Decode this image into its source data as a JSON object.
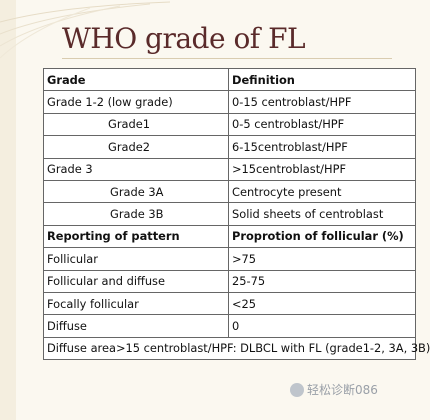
{
  "title": "WHO grade of FL",
  "table": {
    "header": {
      "grade": "Grade",
      "definition": "Definition"
    },
    "rows": [
      {
        "grade": "Grade 1-2 (low grade)",
        "definition": "0-15 centroblast/HPF"
      },
      {
        "grade": "Grade1",
        "definition": "0-5 centroblast/HPF"
      },
      {
        "grade": "Grade2",
        "definition": "6-15centroblast/HPF"
      },
      {
        "grade": "Grade 3",
        "definition": ">15centroblast/HPF"
      },
      {
        "grade": "Grade 3A",
        "definition": "Centrocyte present"
      },
      {
        "grade": "Grade 3B",
        "definition": "Solid sheets of centroblast"
      }
    ],
    "pattern_header": {
      "label": "Reporting of pattern",
      "value": "Proprotion of follicular (%)"
    },
    "pattern_rows": [
      {
        "label": "Follicular",
        "value": ">75"
      },
      {
        "label": "Follicular and diffuse",
        "value": "25-75"
      },
      {
        "label": "Focally follicular",
        "value": "<25"
      },
      {
        "label": "Diffuse",
        "value": "0"
      }
    ],
    "footer": "Diffuse area>15 centroblast/HPF: DLBCL with FL (grade1-2, 3A, 3B)"
  },
  "watermark": {
    "text": "轻松诊断086",
    "icon": "wechat-icon"
  }
}
